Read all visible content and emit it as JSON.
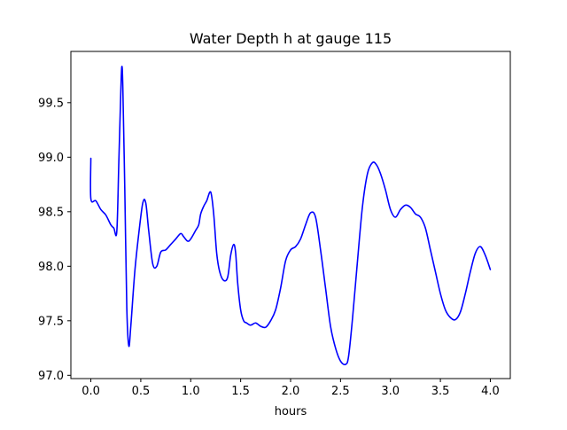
{
  "chart_data": {
    "type": "line",
    "title": "Water Depth h at gauge 115",
    "xlabel": "hours",
    "ylabel": "",
    "xlim": [
      -0.2,
      4.2
    ],
    "ylim": [
      96.97,
      99.97
    ],
    "xticks": [
      0.0,
      0.5,
      1.0,
      1.5,
      2.0,
      2.5,
      3.0,
      3.5,
      4.0
    ],
    "xtick_labels": [
      "0.0",
      "0.5",
      "1.0",
      "1.5",
      "2.0",
      "2.5",
      "3.0",
      "3.5",
      "4.0"
    ],
    "yticks": [
      97.0,
      97.5,
      98.0,
      98.5,
      99.0,
      99.5
    ],
    "ytick_labels": [
      "97.0",
      "97.5",
      "98.0",
      "98.5",
      "99.0",
      "99.5"
    ],
    "grid": false,
    "legend": "none",
    "line_color": "#0000ff",
    "series": [
      {
        "x": [
          0.0,
          0.0,
          0.05,
          0.1,
          0.15,
          0.2,
          0.23,
          0.26,
          0.28,
          0.3,
          0.31,
          0.32,
          0.34,
          0.36,
          0.38,
          0.4,
          0.44,
          0.48,
          0.52,
          0.55,
          0.58,
          0.62,
          0.66,
          0.7,
          0.75,
          0.8,
          0.85,
          0.9,
          0.93,
          0.97,
          1.0,
          1.05,
          1.08,
          1.1,
          1.13,
          1.16,
          1.2,
          1.23,
          1.26,
          1.29,
          1.33,
          1.37,
          1.4,
          1.43,
          1.45,
          1.47,
          1.5,
          1.53,
          1.56,
          1.6,
          1.65,
          1.7,
          1.75,
          1.8,
          1.85,
          1.9,
          1.95,
          2.0,
          2.05,
          2.1,
          2.15,
          2.2,
          2.25,
          2.3,
          2.35,
          2.4,
          2.45,
          2.5,
          2.55,
          2.58,
          2.62,
          2.67,
          2.72,
          2.77,
          2.82,
          2.86,
          2.9,
          2.95,
          3.0,
          3.05,
          3.1,
          3.15,
          3.2,
          3.25,
          3.3,
          3.35,
          3.4,
          3.45,
          3.5,
          3.55,
          3.6,
          3.65,
          3.7,
          3.75,
          3.8,
          3.85,
          3.9,
          3.95,
          4.0
        ],
        "y": [
          98.99,
          98.62,
          98.6,
          98.52,
          98.47,
          98.38,
          98.35,
          98.32,
          98.95,
          99.6,
          99.83,
          99.65,
          98.7,
          97.62,
          97.27,
          97.45,
          97.95,
          98.3,
          98.58,
          98.58,
          98.32,
          98.02,
          98.0,
          98.13,
          98.15,
          98.2,
          98.25,
          98.3,
          98.27,
          98.23,
          98.25,
          98.33,
          98.38,
          98.48,
          98.55,
          98.6,
          98.68,
          98.48,
          98.12,
          97.95,
          97.87,
          97.9,
          98.1,
          98.2,
          98.12,
          97.85,
          97.6,
          97.5,
          97.48,
          97.46,
          97.48,
          97.45,
          97.44,
          97.5,
          97.6,
          97.8,
          98.05,
          98.15,
          98.18,
          98.25,
          98.38,
          98.49,
          98.45,
          98.15,
          97.8,
          97.45,
          97.25,
          97.13,
          97.1,
          97.17,
          97.52,
          98.05,
          98.55,
          98.85,
          98.95,
          98.93,
          98.85,
          98.7,
          98.52,
          98.45,
          98.52,
          98.56,
          98.54,
          98.48,
          98.45,
          98.35,
          98.15,
          97.95,
          97.75,
          97.6,
          97.53,
          97.51,
          97.58,
          97.75,
          97.95,
          98.12,
          98.18,
          98.1,
          97.97
        ]
      }
    ]
  }
}
